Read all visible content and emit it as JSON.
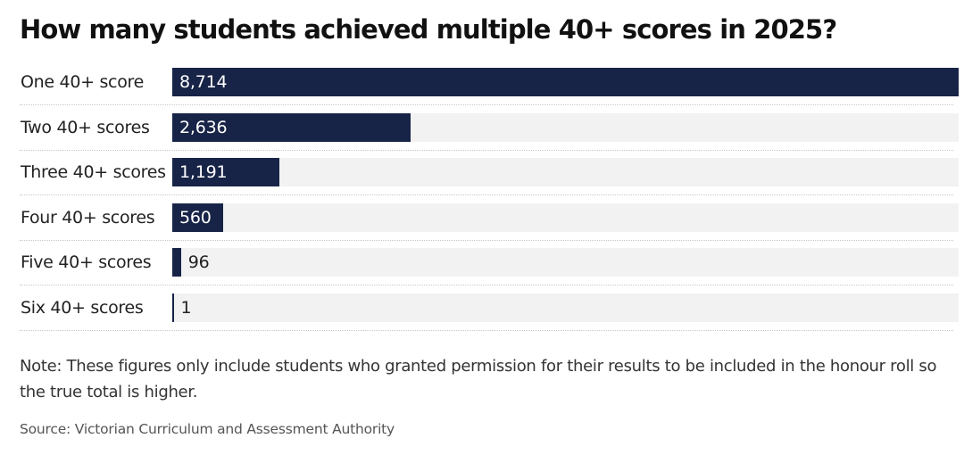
{
  "chart_data": {
    "type": "bar",
    "orientation": "horizontal",
    "title": "How many students achieved multiple 40+ scores in 2025?",
    "categories": [
      "One 40+ score",
      "Two 40+ scores",
      "Three 40+ scores",
      "Four 40+ scores",
      "Five 40+ scores",
      "Six 40+ scores"
    ],
    "values": [
      8714,
      2636,
      1191,
      560,
      96,
      1
    ],
    "value_labels": [
      "8,714",
      "2,636",
      "1,191",
      "560",
      "96",
      "1"
    ],
    "xlim": [
      0,
      8714
    ],
    "grid": false,
    "legend": "none",
    "bar_color": "#172447",
    "track_color": "#f2f2f2"
  },
  "note": "Note: These figures only include students who granted permission for their results to be included in the honour roll so the true total is higher.",
  "source": "Source: Victorian Curriculum and Assessment Authority"
}
